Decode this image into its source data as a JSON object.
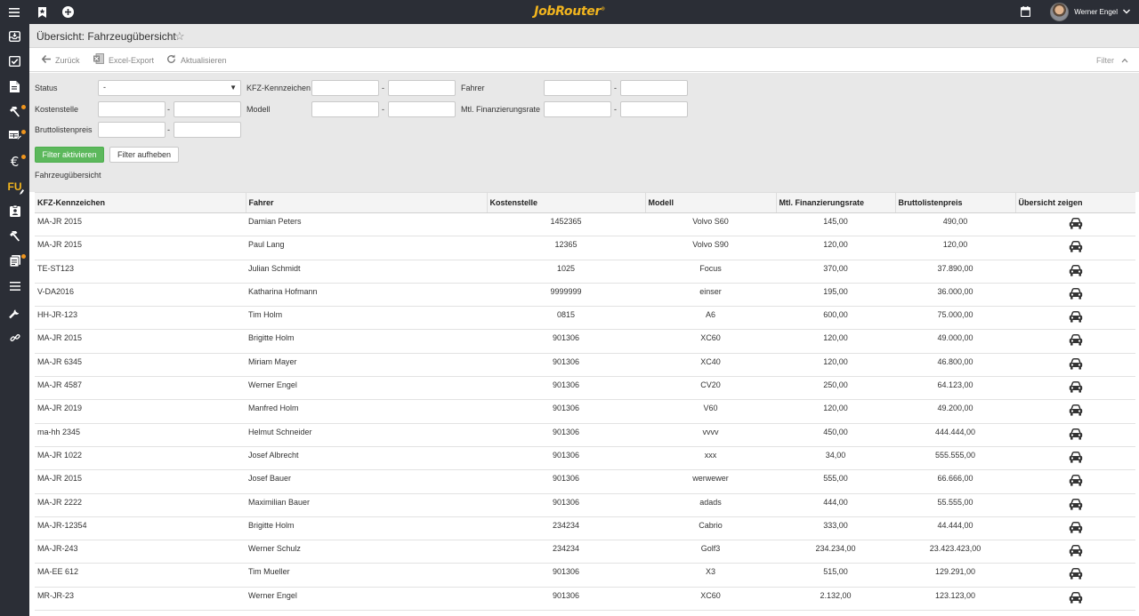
{
  "topbar": {
    "brand": "JobRouter",
    "brand_mark": "®",
    "user_name": "Werner Engel"
  },
  "sidebar": {
    "items": [
      {
        "icon": "inbox-icon"
      },
      {
        "icon": "tasks-icon"
      },
      {
        "icon": "document-icon"
      },
      {
        "icon": "hammer-icon",
        "badge": true
      },
      {
        "icon": "table-edit-icon",
        "badge": true
      },
      {
        "icon": "euro-icon",
        "badge": true
      },
      {
        "icon": "fu-icon",
        "label": "FU"
      },
      {
        "icon": "id-card-icon"
      },
      {
        "icon": "hammer-icon"
      },
      {
        "icon": "clipboard-icon",
        "badge": true
      },
      {
        "icon": "list-icon"
      },
      {
        "icon": "wrench-icon"
      },
      {
        "icon": "link-icon"
      }
    ]
  },
  "header": {
    "title": "Übersicht: Fahrzeugübersicht"
  },
  "toolbar": {
    "back": "Zurück",
    "excel": "Excel-Export",
    "refresh": "Aktualisieren",
    "filter": "Filter"
  },
  "filters": {
    "status_label": "Status",
    "status_value": "-",
    "kfz_label": "KFZ-Kennzeichen",
    "fahrer_label": "Fahrer",
    "kostenstelle_label": "Kostenstelle",
    "modell_label": "Modell",
    "rate_label": "Mtl. Finanzierungsrate",
    "preis_label": "Bruttolistenpreis",
    "range_sep": "-",
    "activate": "Filter aktivieren",
    "clear": "Filter aufheben"
  },
  "section_label": "Fahrzeugübersicht",
  "table": {
    "columns": [
      "KFZ-Kennzeichen",
      "Fahrer",
      "Kostenstelle",
      "Modell",
      "Mtl. Finanzierungsrate",
      "Bruttolistenpreis",
      "Übersicht zeigen"
    ],
    "rows": [
      [
        "MA-JR 2015",
        "Damian Peters",
        "1452365",
        "Volvo S60",
        "145,00",
        "490,00"
      ],
      [
        "MA-JR 2015",
        "Paul Lang",
        "12365",
        "Volvo S90",
        "120,00",
        "120,00"
      ],
      [
        "TE-ST123",
        "Julian Schmidt",
        "1025",
        "Focus",
        "370,00",
        "37.890,00"
      ],
      [
        "V-DA2016",
        "Katharina Hofmann",
        "9999999",
        "einser",
        "195,00",
        "36.000,00"
      ],
      [
        "HH-JR-123",
        "Tim Holm",
        "0815",
        "A6",
        "600,00",
        "75.000,00"
      ],
      [
        "MA-JR 2015",
        "Brigitte Holm",
        "901306",
        "XC60",
        "120,00",
        "49.000,00"
      ],
      [
        "MA-JR 6345",
        "Miriam Mayer",
        "901306",
        "XC40",
        "120,00",
        "46.800,00"
      ],
      [
        "MA-JR 4587",
        "Werner Engel",
        "901306",
        "CV20",
        "250,00",
        "64.123,00"
      ],
      [
        "MA-JR 2019",
        "Manfred Holm",
        "901306",
        "V60",
        "120,00",
        "49.200,00"
      ],
      [
        "ma-hh 2345",
        "Helmut Schneider",
        "901306",
        "vvvv",
        "450,00",
        "444.444,00"
      ],
      [
        "MA-JR 1022",
        "Josef Albrecht",
        "901306",
        "xxx",
        "34,00",
        "555.555,00"
      ],
      [
        "MA-JR 2015",
        "Josef Bauer",
        "901306",
        "werwewer",
        "555,00",
        "66.666,00"
      ],
      [
        "MA-JR 2222",
        "Maximilian Bauer",
        "901306",
        "adads",
        "444,00",
        "55.555,00"
      ],
      [
        "MA-JR-12354",
        "Brigitte Holm",
        "234234",
        "Cabrio",
        "333,00",
        "44.444,00"
      ],
      [
        "MA-JR-243",
        "Werner Schulz",
        "234234",
        "Golf3",
        "234.234,00",
        "23.423.423,00"
      ],
      [
        "MA-EE 612",
        "Tim Mueller",
        "901306",
        "X3",
        "515,00",
        "129.291,00"
      ],
      [
        "MR-JR-23",
        "Werner Engel",
        "901306",
        "XC60",
        "2.132,00",
        "123.123,00"
      ]
    ]
  }
}
